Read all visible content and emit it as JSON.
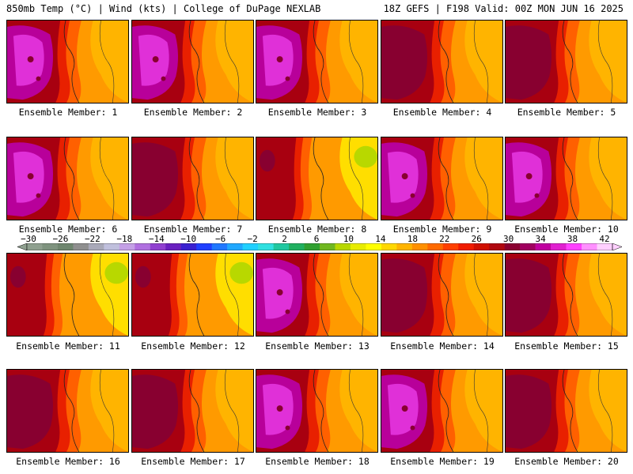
{
  "header": {
    "left": "850mb Temp (°C) | Wind (kts) | College of DuPage NEXLAB",
    "right": "18Z GEFS | F198 Valid: 00Z MON JUN 16 2025"
  },
  "colorbar": {
    "labels": [
      "−30",
      "−26",
      "−22",
      "−18",
      "−14",
      "−10",
      "−6",
      "−2",
      "2",
      "6",
      "10",
      "14",
      "18",
      "22",
      "26",
      "30",
      "34",
      "38",
      "42"
    ],
    "colors": [
      "#8fa08f",
      "#7f937f",
      "#6f866f",
      "#8f8f8f",
      "#a9a9b9",
      "#c0c0dd",
      "#c4a0e6",
      "#b070e0",
      "#9040d0",
      "#6a20c0",
      "#3a20d0",
      "#2040ff",
      "#2078ff",
      "#20a8ff",
      "#20d0ff",
      "#30e0e0",
      "#20c8a0",
      "#20b060",
      "#30a030",
      "#70b820",
      "#b8d800",
      "#e8ec00",
      "#ffff00",
      "#ffd800",
      "#ffb400",
      "#ff9000",
      "#ff6a00",
      "#ff4000",
      "#f01c00",
      "#d01000",
      "#b00810",
      "#8a0030",
      "#a00060",
      "#c000a0",
      "#e020d0",
      "#ff40ff",
      "#ff90ff",
      "#ffd0ff"
    ]
  },
  "panel_style": {
    "bg": "#ff9a00",
    "light": "#ffb400",
    "yellow": "#ffde00",
    "red_orange": "#ff6000",
    "red": "#e82000",
    "dark_red": "#a80010",
    "maroon": "#880030",
    "magenta": "#b8009a",
    "pink": "#e030d8",
    "green": "#b8d800"
  },
  "members": [
    {
      "caption": "Ensemble Member: 1",
      "variant": 0
    },
    {
      "caption": "Ensemble Member: 2",
      "variant": 1
    },
    {
      "caption": "Ensemble Member: 3",
      "variant": 0
    },
    {
      "caption": "Ensemble Member: 4",
      "variant": 2
    },
    {
      "caption": "Ensemble Member: 5",
      "variant": 2
    },
    {
      "caption": "Ensemble Member: 6",
      "variant": 0
    },
    {
      "caption": "Ensemble Member: 7",
      "variant": 2
    },
    {
      "caption": "Ensemble Member: 8",
      "variant": 3
    },
    {
      "caption": "Ensemble Member: 9",
      "variant": 1
    },
    {
      "caption": "Ensemble Member: 10",
      "variant": 0
    },
    {
      "caption": "Ensemble Member: 11",
      "variant": 3
    },
    {
      "caption": "Ensemble Member: 12",
      "variant": 3
    },
    {
      "caption": "Ensemble Member: 13",
      "variant": 1
    },
    {
      "caption": "Ensemble Member: 14",
      "variant": 2
    },
    {
      "caption": "Ensemble Member: 15",
      "variant": 2
    },
    {
      "caption": "Ensemble Member: 16",
      "variant": 2
    },
    {
      "caption": "Ensemble Member: 17",
      "variant": 2
    },
    {
      "caption": "Ensemble Member: 18",
      "variant": 0
    },
    {
      "caption": "Ensemble Member: 19",
      "variant": 1
    },
    {
      "caption": "Ensemble Member: 20",
      "variant": 2
    }
  ]
}
